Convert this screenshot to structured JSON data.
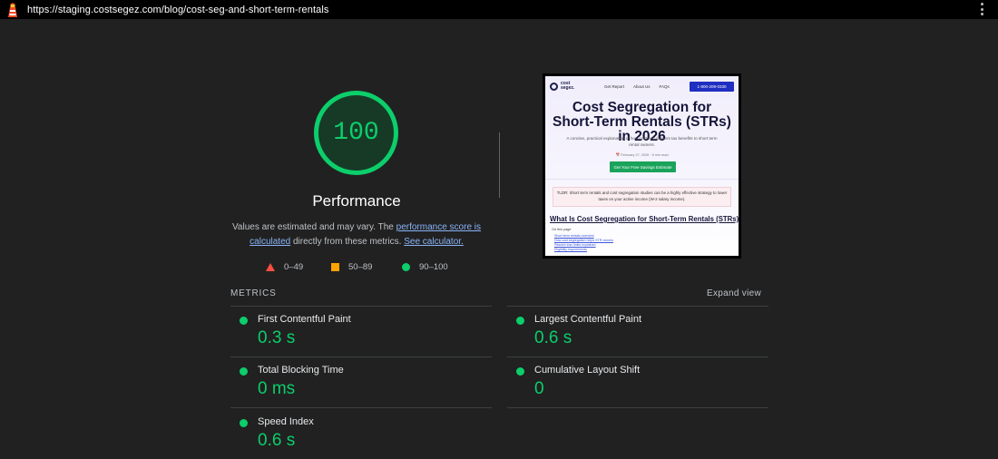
{
  "topbar": {
    "url": "https://staging.costsegez.com/blog/cost-seg-and-short-term-rentals",
    "logo_icon": "lighthouse-icon",
    "menu_icon": "kebab-menu-icon"
  },
  "score": {
    "value": "100",
    "label": "Performance",
    "ring_fraction": 1.0,
    "color": "#0cce6b"
  },
  "description": {
    "prefix": "Values are estimated and may vary. The ",
    "link1": "performance score is calculated",
    "middle": " directly from these metrics. ",
    "link2": "See calculator."
  },
  "legend": {
    "fail": "0–49",
    "average": "50–89",
    "pass": "90–100",
    "colors": {
      "fail": "#ff4e42",
      "average": "#ffa400",
      "pass": "#0cce6b"
    }
  },
  "screenshot": {
    "brand_line1": "cost",
    "brand_line2": "segez.",
    "nav_links": [
      "Get Report",
      "About Us",
      "FAQs"
    ],
    "phone": "1-800-209-0330",
    "title": "Cost Segregation for Short-Term Rentals (STRs) in 2026",
    "subtitle": "A concise, practical explanation of how cost seg delivers tax benefits to short term rental owners.",
    "meta": "📅 February 27, 2026 · 6 min read",
    "cta": "Get Your Free Savings Estimate",
    "tldr": "TLDR: Short term rentals and cost segregation studies can be a highly effective strategy to lower taxes on your active income (W-2 salary income).",
    "h2": "What Is Cost Segregation for Short-Term Rentals (STRs)?",
    "on_this_page": "On this page",
    "toc": [
      "Short term rentals overview",
      "How cost segregation helps STR owners",
      "Passive loss limits explained",
      "Eligibility requirements"
    ]
  },
  "metrics": {
    "label": "METRICS",
    "expand": "Expand view",
    "items": [
      {
        "name": "First Contentful Paint",
        "value": "0.3 s"
      },
      {
        "name": "Largest Contentful Paint",
        "value": "0.6 s"
      },
      {
        "name": "Total Blocking Time",
        "value": "0 ms"
      },
      {
        "name": "Cumulative Layout Shift",
        "value": "0"
      },
      {
        "name": "Speed Index",
        "value": "0.6 s"
      }
    ]
  }
}
